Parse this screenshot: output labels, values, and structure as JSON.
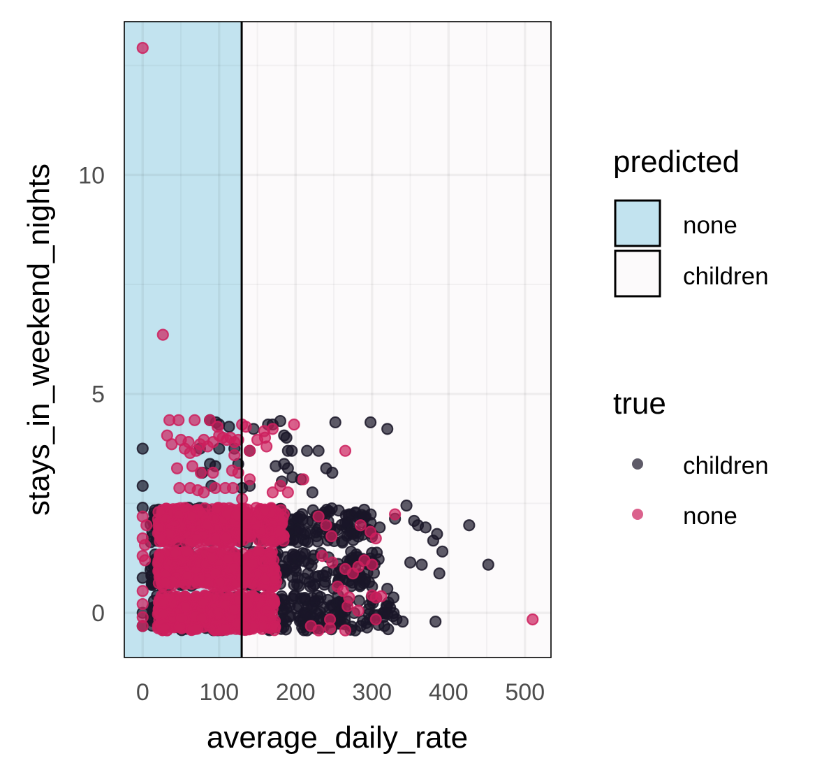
{
  "chart_data": {
    "type": "scatter",
    "title": "",
    "xlabel": "average_daily_rate",
    "ylabel": "stays_in_weekend_nights",
    "xlim": [
      -24,
      534
    ],
    "ylim": [
      -1.02,
      13.5
    ],
    "x_ticks": [
      0,
      100,
      200,
      300,
      400,
      500
    ],
    "x_tick_labels": [
      "0",
      "100",
      "200",
      "300",
      "400",
      "500"
    ],
    "x_minor_ticks": [
      50,
      150,
      250,
      350,
      450
    ],
    "y_ticks": [
      0,
      5,
      10
    ],
    "y_tick_labels": [
      "0",
      "5",
      "10"
    ],
    "y_minor_ticks": [
      2.5,
      7.5,
      12.5
    ],
    "grid": true,
    "decision_boundary": {
      "x": 129.5,
      "regions": [
        {
          "predicted": "none",
          "from": -24,
          "to": 129.5,
          "color": "#c2e3ef"
        },
        {
          "predicted": "children",
          "from": 129.5,
          "to": 534,
          "color": "#fcfafb"
        }
      ]
    },
    "legends": {
      "position": "right",
      "predicted": {
        "title": "predicted",
        "entries": [
          {
            "label": "none",
            "color": "#c2e3ef"
          },
          {
            "label": "children",
            "color": "#fcfafb"
          }
        ]
      },
      "true": {
        "title": "true",
        "entries": [
          {
            "label": "children",
            "color": "#1a1628"
          },
          {
            "label": "none",
            "color": "#cc1f5d"
          }
        ]
      }
    },
    "point_alpha": 0.7,
    "series": [
      {
        "name": "children",
        "color": "#1a1628",
        "dense_bands": [
          {
            "y": 0,
            "x_range": [
              10,
              330
            ],
            "count": 260
          },
          {
            "y": 1,
            "x_range": [
              10,
              310
            ],
            "count": 240
          },
          {
            "y": 2,
            "x_range": [
              10,
              300
            ],
            "count": 240
          }
        ],
        "points": [
          [
            0,
            3.75
          ],
          [
            0,
            2.9
          ],
          [
            0,
            2.4
          ],
          [
            0,
            0.8
          ],
          [
            0,
            0.0
          ],
          [
            0,
            -0.3
          ],
          [
            88,
            4.4
          ],
          [
            96,
            4.35
          ],
          [
            100,
            4.3
          ],
          [
            113,
            4.25
          ],
          [
            180,
            4.38
          ],
          [
            170,
            4.3
          ],
          [
            145,
            4.2
          ],
          [
            164,
            4.3
          ],
          [
            185,
            4.05
          ],
          [
            188,
            4.0
          ],
          [
            252,
            4.35
          ],
          [
            298,
            4.35
          ],
          [
            320,
            4.2
          ],
          [
            75,
            3.75
          ],
          [
            100,
            3.75
          ],
          [
            120,
            3.75
          ],
          [
            140,
            3.7
          ],
          [
            195,
            3.7
          ],
          [
            215,
            3.7
          ],
          [
            230,
            3.7
          ],
          [
            190,
            3.7
          ],
          [
            240,
            3.3
          ],
          [
            248,
            3.2
          ],
          [
            185,
            3.4
          ],
          [
            190,
            3.3
          ],
          [
            174,
            3.35
          ],
          [
            88,
            3.4
          ],
          [
            95,
            3.35
          ],
          [
            125,
            3.4
          ],
          [
            78,
            3.2
          ],
          [
            182,
            3.0
          ],
          [
            196,
            3.1
          ],
          [
            207,
            3.05
          ],
          [
            222,
            2.75
          ],
          [
            60,
            2.4
          ],
          [
            112,
            2.3
          ],
          [
            90,
            2.9
          ],
          [
            130,
            2.85
          ],
          [
            140,
            2.9
          ],
          [
            345,
            2.45
          ],
          [
            355,
            2.1
          ],
          [
            360,
            2.0
          ],
          [
            370,
            1.95
          ],
          [
            385,
            1.8
          ],
          [
            380,
            1.65
          ],
          [
            392,
            1.4
          ],
          [
            427,
            2.0
          ],
          [
            330,
            2.15
          ],
          [
            310,
            1.95
          ],
          [
            300,
            1.8
          ],
          [
            290,
            2.2
          ],
          [
            265,
            2.05
          ],
          [
            270,
            1.8
          ],
          [
            350,
            1.15
          ],
          [
            365,
            1.1
          ],
          [
            388,
            0.9
          ],
          [
            452,
            1.1
          ],
          [
            278,
            1.05
          ],
          [
            270,
            0.9
          ],
          [
            300,
            0.6
          ],
          [
            320,
            0.55
          ],
          [
            328,
            0.35
          ],
          [
            260,
            0.2
          ],
          [
            250,
            0.55
          ],
          [
            245,
            0.1
          ],
          [
            315,
            0.0
          ],
          [
            332,
            -0.15
          ],
          [
            340,
            -0.2
          ],
          [
            383,
            -0.2
          ],
          [
            285,
            -0.3
          ],
          [
            308,
            -0.05
          ],
          [
            278,
            -0.4
          ],
          [
            225,
            -0.35
          ],
          [
            215,
            -0.4
          ]
        ]
      },
      {
        "name": "none",
        "color": "#cc1f5d",
        "dense_bands": [
          {
            "y": 0,
            "x_range": [
              20,
              175
            ],
            "count": 420
          },
          {
            "y": 1,
            "x_range": [
              20,
              175
            ],
            "count": 400
          },
          {
            "y": 2,
            "x_range": [
              20,
              185
            ],
            "count": 420
          }
        ],
        "points": [
          [
            0,
            12.9
          ],
          [
            26.5,
            6.35
          ],
          [
            35,
            4.4
          ],
          [
            47,
            4.4
          ],
          [
            68,
            4.4
          ],
          [
            88,
            4.4
          ],
          [
            98,
            4.25
          ],
          [
            130,
            4.3
          ],
          [
            135,
            4.25
          ],
          [
            198,
            4.3
          ],
          [
            265,
            3.7
          ],
          [
            159,
            4.15
          ],
          [
            170,
            4.2
          ],
          [
            32,
            4.05
          ],
          [
            50,
            3.95
          ],
          [
            60,
            3.9
          ],
          [
            75,
            3.85
          ],
          [
            80,
            3.95
          ],
          [
            92,
            3.9
          ],
          [
            100,
            4.05
          ],
          [
            105,
            4.0
          ],
          [
            110,
            3.95
          ],
          [
            115,
            4.0
          ],
          [
            120,
            3.9
          ],
          [
            125,
            3.95
          ],
          [
            150,
            3.95
          ],
          [
            160,
            4.0
          ],
          [
            38,
            3.85
          ],
          [
            55,
            3.75
          ],
          [
            62,
            3.65
          ],
          [
            70,
            3.7
          ],
          [
            85,
            3.8
          ],
          [
            120,
            3.6
          ],
          [
            140,
            3.7
          ],
          [
            162,
            3.8
          ],
          [
            45,
            3.3
          ],
          [
            65,
            3.35
          ],
          [
            76,
            3.2
          ],
          [
            92,
            3.2
          ],
          [
            117,
            3.25
          ],
          [
            125,
            3.2
          ],
          [
            140,
            3.05
          ],
          [
            48,
            2.85
          ],
          [
            62,
            2.85
          ],
          [
            72,
            2.8
          ],
          [
            80,
            2.75
          ],
          [
            95,
            2.85
          ],
          [
            108,
            2.85
          ],
          [
            118,
            2.85
          ],
          [
            130,
            2.6
          ],
          [
            190,
            2.75
          ],
          [
            210,
            3.05
          ],
          [
            180,
            2.9
          ],
          [
            170,
            2.75
          ],
          [
            0,
            2.2
          ],
          [
            5,
            2.0
          ],
          [
            0,
            1.7
          ],
          [
            3,
            1.55
          ],
          [
            0,
            1.3
          ],
          [
            3,
            1.2
          ],
          [
            0,
            0.5
          ],
          [
            0,
            0.2
          ],
          [
            0,
            -0.1
          ],
          [
            0,
            -0.3
          ],
          [
            230,
            2.2
          ],
          [
            240,
            2.0
          ],
          [
            247,
            1.75
          ],
          [
            285,
            2.0
          ],
          [
            298,
            1.85
          ],
          [
            305,
            1.7
          ],
          [
            330,
            2.25
          ],
          [
            235,
            1.3
          ],
          [
            248,
            1.15
          ],
          [
            265,
            1.0
          ],
          [
            275,
            0.9
          ],
          [
            282,
            1.05
          ],
          [
            290,
            1.2
          ],
          [
            300,
            1.1
          ],
          [
            255,
            0.6
          ],
          [
            262,
            0.5
          ],
          [
            270,
            0.35
          ],
          [
            268,
            0.15
          ],
          [
            282,
            0.05
          ],
          [
            305,
            0.35
          ],
          [
            312,
            0.38
          ],
          [
            300,
            0.4
          ],
          [
            245,
            -0.15
          ],
          [
            220,
            -0.3
          ],
          [
            230,
            -0.4
          ],
          [
            245,
            -0.35
          ],
          [
            265,
            -0.4
          ],
          [
            305,
            -0.15
          ],
          [
            510,
            -0.15
          ]
        ]
      }
    ]
  }
}
